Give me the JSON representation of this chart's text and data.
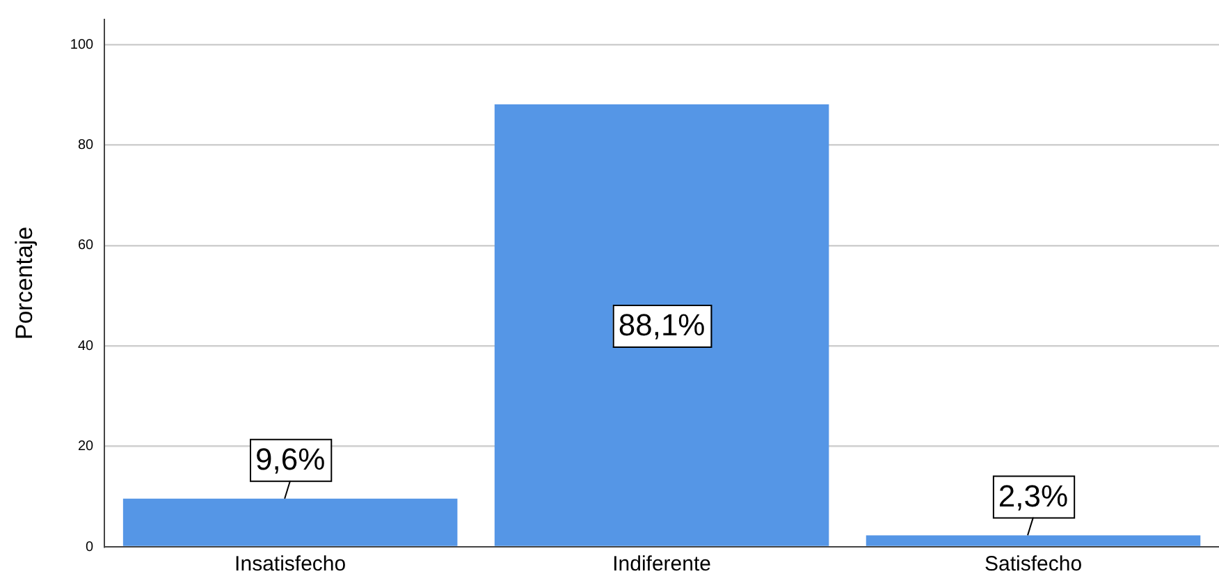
{
  "chart_data": {
    "type": "bar",
    "ylabel": "Porcentaje",
    "categories": [
      "Insatisfecho",
      "Indiferente",
      "Satisfecho"
    ],
    "values": [
      9.6,
      88.1,
      2.3
    ],
    "color": "#5596e6",
    "value_labels": [
      "9,6%",
      "88,1%",
      "2,3%"
    ],
    "ylim": [
      0,
      105
    ],
    "yticks": [
      0,
      20,
      40,
      60,
      80,
      100
    ],
    "grid": "y",
    "legend": false
  }
}
